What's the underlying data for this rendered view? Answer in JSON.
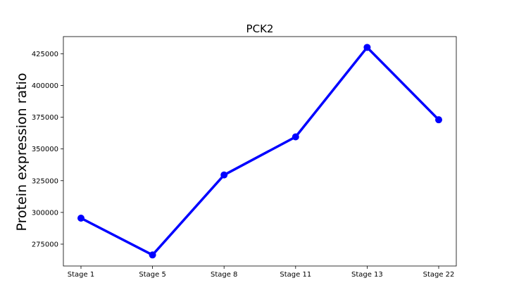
{
  "chart_data": {
    "type": "line",
    "title": "PCK2",
    "xlabel": "",
    "ylabel": "Protein expression ratio",
    "categories": [
      "Stage 1",
      "Stage 5",
      "Stage 8",
      "Stage 11",
      "Stage 13",
      "Stage 22"
    ],
    "series": [
      {
        "values": [
          295500,
          266500,
          329500,
          359500,
          430000,
          373000
        ]
      }
    ],
    "ylim": [
      257800,
      438500
    ],
    "yticks": [
      275000,
      300000,
      325000,
      350000,
      375000,
      400000,
      425000
    ],
    "ytick_labels": [
      "275000",
      "300000",
      "325000",
      "350000",
      "375000",
      "400000",
      "425000"
    ],
    "grid": false,
    "line_color": "#0000ff",
    "marker_color": "#0000ff"
  }
}
